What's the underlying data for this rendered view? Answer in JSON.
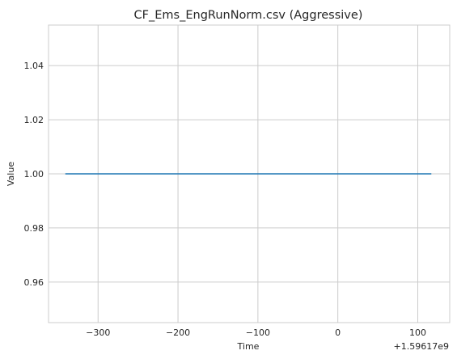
{
  "chart_data": {
    "type": "line",
    "title": "CF_Ems_EngRunNorm.csv (Aggressive)",
    "xlabel": "Time",
    "ylabel": "Value",
    "x_offset_label": "+1.59617e9",
    "xlim": [
      -362,
      140
    ],
    "ylim": [
      0.945,
      1.055
    ],
    "xticks": [
      -300,
      -200,
      -100,
      0,
      100
    ],
    "xtick_labels": [
      "−300",
      "−200",
      "−100",
      "0",
      "100"
    ],
    "yticks": [
      0.96,
      0.98,
      1.0,
      1.02,
      1.04
    ],
    "ytick_labels": [
      "0.96",
      "0.98",
      "1.00",
      "1.02",
      "1.04"
    ],
    "grid": true,
    "series": [
      {
        "color": "#1f77b4",
        "x": [
          -341,
          117
        ],
        "y": [
          1.0,
          1.0
        ]
      }
    ]
  }
}
